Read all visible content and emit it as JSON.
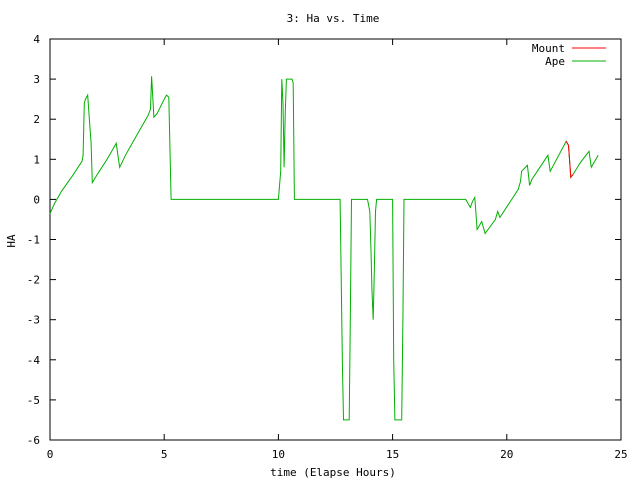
{
  "chart_data": {
    "type": "line",
    "title": "3: Ha vs. Time",
    "xlabel": "time (Elapse Hours)",
    "ylabel": "HA",
    "xlim": [
      0,
      25
    ],
    "ylim": [
      -6,
      4
    ],
    "xticks": [
      0,
      5,
      10,
      15,
      20,
      25
    ],
    "yticks": [
      -6,
      -5,
      -4,
      -3,
      -2,
      -1,
      0,
      1,
      2,
      3,
      4
    ],
    "grid": false,
    "legend_position": "top-right",
    "series": [
      {
        "name": "Mount",
        "color": "#ff0000",
        "points": [
          [
            22.6,
            1.45
          ],
          [
            22.7,
            1.35
          ],
          [
            22.8,
            0.55
          ],
          [
            22.9,
            0.62
          ]
        ]
      },
      {
        "name": "Ape",
        "color": "#00b000",
        "points": [
          [
            0,
            -0.35
          ],
          [
            0.2,
            -0.1
          ],
          [
            0.5,
            0.2
          ],
          [
            1.0,
            0.6
          ],
          [
            1.4,
            0.95
          ],
          [
            1.45,
            1.1
          ],
          [
            1.5,
            2.4
          ],
          [
            1.55,
            2.5
          ],
          [
            1.65,
            2.6
          ],
          [
            1.7,
            2.2
          ],
          [
            1.8,
            1.4
          ],
          [
            1.85,
            0.42
          ],
          [
            2.1,
            0.65
          ],
          [
            2.5,
            1.0
          ],
          [
            2.8,
            1.3
          ],
          [
            2.9,
            1.4
          ],
          [
            3.0,
            1.0
          ],
          [
            3.05,
            0.8
          ],
          [
            3.3,
            1.1
          ],
          [
            3.7,
            1.5
          ],
          [
            4.1,
            1.9
          ],
          [
            4.3,
            2.1
          ],
          [
            4.4,
            2.25
          ],
          [
            4.45,
            3.07
          ],
          [
            4.55,
            2.05
          ],
          [
            4.7,
            2.15
          ],
          [
            5.0,
            2.5
          ],
          [
            5.1,
            2.6
          ],
          [
            5.2,
            2.55
          ],
          [
            5.3,
            0
          ],
          [
            10.0,
            0
          ],
          [
            10.1,
            0.7
          ],
          [
            10.15,
            3.0
          ],
          [
            10.2,
            2.4
          ],
          [
            10.25,
            0.8
          ],
          [
            10.3,
            2.2
          ],
          [
            10.35,
            3.0
          ],
          [
            10.6,
            3.0
          ],
          [
            10.65,
            2.9
          ],
          [
            10.7,
            0
          ],
          [
            12.7,
            0
          ],
          [
            12.8,
            -4.1
          ],
          [
            12.85,
            -5.5
          ],
          [
            13.1,
            -5.5
          ],
          [
            13.15,
            -3.0
          ],
          [
            13.2,
            0
          ],
          [
            13.9,
            0
          ],
          [
            14.0,
            -0.3
          ],
          [
            14.05,
            -1.2
          ],
          [
            14.1,
            -2.3
          ],
          [
            14.15,
            -3.0
          ],
          [
            14.2,
            -1.8
          ],
          [
            14.25,
            -0.3
          ],
          [
            14.3,
            0
          ],
          [
            15.0,
            0
          ],
          [
            15.05,
            -4.0
          ],
          [
            15.1,
            -5.5
          ],
          [
            15.4,
            -5.5
          ],
          [
            15.45,
            -3.0
          ],
          [
            15.5,
            0
          ],
          [
            18.2,
            0
          ],
          [
            18.4,
            -0.2
          ],
          [
            18.5,
            -0.05
          ],
          [
            18.6,
            0.05
          ],
          [
            18.7,
            -0.75
          ],
          [
            18.9,
            -0.55
          ],
          [
            19.05,
            -0.85
          ],
          [
            19.5,
            -0.5
          ],
          [
            19.6,
            -0.3
          ],
          [
            19.7,
            -0.45
          ],
          [
            20.1,
            -0.1
          ],
          [
            20.5,
            0.25
          ],
          [
            20.6,
            0.45
          ],
          [
            20.65,
            0.7
          ],
          [
            20.9,
            0.85
          ],
          [
            21.0,
            0.35
          ],
          [
            21.1,
            0.5
          ],
          [
            21.8,
            1.1
          ],
          [
            21.9,
            0.7
          ],
          [
            22.6,
            1.45
          ],
          [
            22.7,
            1.35
          ],
          [
            22.8,
            0.55
          ],
          [
            22.9,
            0.62
          ],
          [
            23.2,
            0.9
          ],
          [
            23.6,
            1.2
          ],
          [
            23.7,
            0.8
          ],
          [
            24.0,
            1.1
          ]
        ]
      }
    ]
  }
}
